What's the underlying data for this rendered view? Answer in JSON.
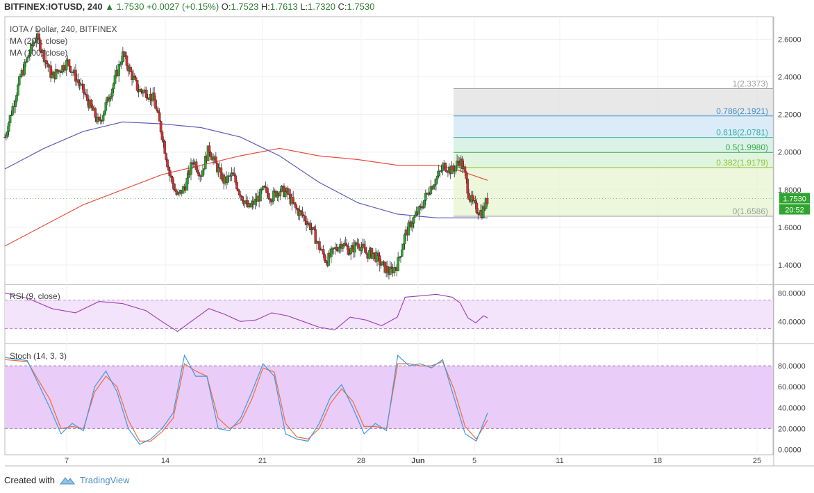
{
  "header": {
    "symbol": "BITFINEX:IOTUSD, 240",
    "change_arrow": "▲",
    "o_label": "O:",
    "o_value": "1.7523",
    "h_label": "H:",
    "h_value": "1.7613",
    "l_label": "L:",
    "l_value": "1.7320",
    "c_label": "C:",
    "c_value": "1.7530",
    "last": "1.7530",
    "change": "+0.0027 (+0.15%)"
  },
  "footer": {
    "created_with": "Created with",
    "brand": "TradingView"
  },
  "colors": {
    "up_candle": "#2ea52e",
    "down_candle": "#d32f2f",
    "ma200": "#e74c3c",
    "ma100": "#5c5cb8",
    "rsi": "#9b3fb5",
    "stoch_k": "#3b9ae1",
    "stoch_d": "#f26b38",
    "fib_100": "#e0e0e0",
    "fib_786": "#cfe5f5",
    "fib_618": "#cfeee2",
    "fib_500": "#d6f2d6",
    "fib_382": "#e6f4cf"
  },
  "chart_data": [
    {
      "type": "candlestick",
      "title": "IOTA / Dollar, 240, BITFINEX",
      "indicators": [
        "MA (200, close)",
        "MA (100, close)"
      ],
      "x_tick_labels": [
        "7",
        "14",
        "21",
        "28",
        "Jun",
        "5",
        "11",
        "18",
        "25"
      ],
      "y_tick_labels": [
        "2.6000",
        "2.4000",
        "2.2000",
        "2.0000",
        "1.8000",
        "1.6000",
        "1.4000"
      ],
      "ylim": [
        1.3,
        2.72
      ],
      "last_price_label": "1.7530",
      "countdown_label": "20:52",
      "price_path": [
        [
          0,
          2.08
        ],
        [
          2,
          2.4
        ],
        [
          4,
          2.62
        ],
        [
          6,
          2.4
        ],
        [
          8,
          2.48
        ],
        [
          10,
          2.32
        ],
        [
          12,
          2.15
        ],
        [
          14,
          2.38
        ],
        [
          15,
          2.52
        ],
        [
          17,
          2.33
        ],
        [
          18,
          2.32
        ],
        [
          19,
          2.28
        ],
        [
          20,
          2.1
        ],
        [
          21,
          1.88
        ],
        [
          22,
          1.76
        ],
        [
          23,
          1.82
        ],
        [
          24,
          1.96
        ],
        [
          25,
          1.88
        ],
        [
          26,
          2.02
        ],
        [
          27,
          1.92
        ],
        [
          28,
          1.84
        ],
        [
          29,
          1.88
        ],
        [
          30,
          1.78
        ],
        [
          31,
          1.7
        ],
        [
          32,
          1.74
        ],
        [
          33,
          1.8
        ],
        [
          34,
          1.76
        ],
        [
          35,
          1.8
        ],
        [
          36,
          1.78
        ],
        [
          37,
          1.7
        ],
        [
          38,
          1.66
        ],
        [
          39,
          1.6
        ],
        [
          40,
          1.5
        ],
        [
          41,
          1.42
        ],
        [
          42,
          1.48
        ],
        [
          43,
          1.52
        ],
        [
          44,
          1.47
        ],
        [
          45,
          1.52
        ],
        [
          46,
          1.46
        ],
        [
          47,
          1.46
        ],
        [
          48,
          1.4
        ],
        [
          49,
          1.36
        ],
        [
          50,
          1.4
        ],
        [
          51,
          1.56
        ],
        [
          52,
          1.64
        ],
        [
          53,
          1.7
        ],
        [
          54,
          1.8
        ],
        [
          55,
          1.86
        ],
        [
          56,
          1.93
        ],
        [
          57,
          1.9
        ],
        [
          58,
          1.96
        ],
        [
          58.5,
          1.9
        ],
        [
          59.2,
          1.76
        ],
        [
          60,
          1.7
        ],
        [
          60.8,
          1.68
        ],
        [
          61.5,
          1.75
        ]
      ],
      "ma200": [
        [
          0,
          1.5
        ],
        [
          10,
          1.72
        ],
        [
          20,
          1.88
        ],
        [
          30,
          1.98
        ],
        [
          35,
          2.02
        ],
        [
          40,
          1.98
        ],
        [
          45,
          1.96
        ],
        [
          50,
          1.93
        ],
        [
          55,
          1.93
        ],
        [
          58,
          1.9
        ],
        [
          61.5,
          1.85
        ]
      ],
      "ma100": [
        [
          0,
          1.91
        ],
        [
          5,
          2.02
        ],
        [
          10,
          2.11
        ],
        [
          15,
          2.16
        ],
        [
          20,
          2.15
        ],
        [
          25,
          2.13
        ],
        [
          30,
          2.08
        ],
        [
          35,
          1.98
        ],
        [
          40,
          1.84
        ],
        [
          45,
          1.73
        ],
        [
          50,
          1.67
        ],
        [
          55,
          1.65
        ],
        [
          60,
          1.65
        ],
        [
          61.5,
          1.65
        ]
      ],
      "fibonacci": [
        {
          "label": "1(2.3373)",
          "level": 2.3373
        },
        {
          "label": "0.786(2.1921)",
          "level": 2.1921
        },
        {
          "label": "0.618(2.0781)",
          "level": 2.0781
        },
        {
          "label": "0.5(1.9980)",
          "level": 1.998
        },
        {
          "label": "0.382(1.9179)",
          "level": 1.9179
        },
        {
          "label": "0(1.6586)",
          "level": 1.6586
        }
      ]
    },
    {
      "type": "line",
      "title": "RSI (9, close)",
      "y_tick_labels": [
        "80.0000",
        "40.0000"
      ],
      "ylim": [
        10,
        90
      ],
      "bands": [
        30,
        70
      ],
      "series": [
        {
          "values": [
            [
              0,
              80
            ],
            [
              3,
              72
            ],
            [
              6,
              58
            ],
            [
              9,
              52
            ],
            [
              12,
              68
            ],
            [
              15,
              65
            ],
            [
              18,
              55
            ],
            [
              20,
              40
            ],
            [
              22,
              26
            ],
            [
              24,
              42
            ],
            [
              26,
              58
            ],
            [
              28,
              50
            ],
            [
              30,
              40
            ],
            [
              32,
              42
            ],
            [
              34,
              52
            ],
            [
              36,
              48
            ],
            [
              38,
              40
            ],
            [
              40,
              32
            ],
            [
              42,
              28
            ],
            [
              44,
              46
            ],
            [
              46,
              42
            ],
            [
              48,
              34
            ],
            [
              50,
              46
            ],
            [
              51,
              74
            ],
            [
              53,
              76
            ],
            [
              55,
              78
            ],
            [
              57,
              74
            ],
            [
              58,
              66
            ],
            [
              59,
              45
            ],
            [
              60,
              38
            ],
            [
              61,
              48
            ],
            [
              61.5,
              45
            ]
          ]
        }
      ]
    },
    {
      "type": "line",
      "title": "Stoch (14, 3, 3)",
      "y_tick_labels": [
        "80.0000",
        "60.0000",
        "40.0000",
        "20.0000",
        "0.0000"
      ],
      "ylim": [
        -5,
        100
      ],
      "bands": [
        20,
        80
      ],
      "series": [
        {
          "values": [
            [
              0,
              88
            ],
            [
              2,
              85
            ],
            [
              4,
              40
            ],
            [
              5,
              15
            ],
            [
              6,
              25
            ],
            [
              7,
              18
            ],
            [
              8,
              60
            ],
            [
              9,
              75
            ],
            [
              10,
              55
            ],
            [
              11,
              20
            ],
            [
              12,
              5
            ],
            [
              13,
              10
            ],
            [
              14,
              20
            ],
            [
              15,
              35
            ],
            [
              16,
              90
            ],
            [
              17,
              70
            ],
            [
              18,
              70
            ],
            [
              19,
              20
            ],
            [
              20,
              18
            ],
            [
              21,
              30
            ],
            [
              22,
              55
            ],
            [
              23,
              82
            ],
            [
              24,
              70
            ],
            [
              25,
              15
            ],
            [
              26,
              10
            ],
            [
              27,
              8
            ],
            [
              28,
              25
            ],
            [
              29,
              50
            ],
            [
              30,
              62
            ],
            [
              31,
              40
            ],
            [
              32,
              15
            ],
            [
              33,
              25
            ],
            [
              34,
              18
            ],
            [
              35,
              90
            ],
            [
              36,
              80
            ],
            [
              37,
              82
            ],
            [
              38,
              78
            ],
            [
              39,
              86
            ],
            [
              40,
              50
            ],
            [
              41,
              15
            ],
            [
              42,
              8
            ],
            [
              43,
              35
            ]
          ]
        },
        {
          "values": [
            [
              0,
              86
            ],
            [
              2,
              84
            ],
            [
              4,
              48
            ],
            [
              5,
              20
            ],
            [
              6,
              22
            ],
            [
              7,
              20
            ],
            [
              8,
              55
            ],
            [
              9,
              70
            ],
            [
              10,
              60
            ],
            [
              11,
              28
            ],
            [
              12,
              8
            ],
            [
              13,
              8
            ],
            [
              14,
              17
            ],
            [
              15,
              30
            ],
            [
              16,
              82
            ],
            [
              17,
              75
            ],
            [
              18,
              70
            ],
            [
              19,
              30
            ],
            [
              20,
              20
            ],
            [
              21,
              26
            ],
            [
              22,
              48
            ],
            [
              23,
              78
            ],
            [
              24,
              74
            ],
            [
              25,
              25
            ],
            [
              26,
              12
            ],
            [
              27,
              10
            ],
            [
              28,
              20
            ],
            [
              29,
              44
            ],
            [
              30,
              58
            ],
            [
              31,
              46
            ],
            [
              32,
              22
            ],
            [
              33,
              22
            ],
            [
              34,
              20
            ],
            [
              35,
              82
            ],
            [
              36,
              82
            ],
            [
              37,
              80
            ],
            [
              38,
              80
            ],
            [
              39,
              84
            ],
            [
              40,
              58
            ],
            [
              41,
              22
            ],
            [
              42,
              10
            ],
            [
              43,
              28
            ]
          ]
        }
      ]
    }
  ]
}
